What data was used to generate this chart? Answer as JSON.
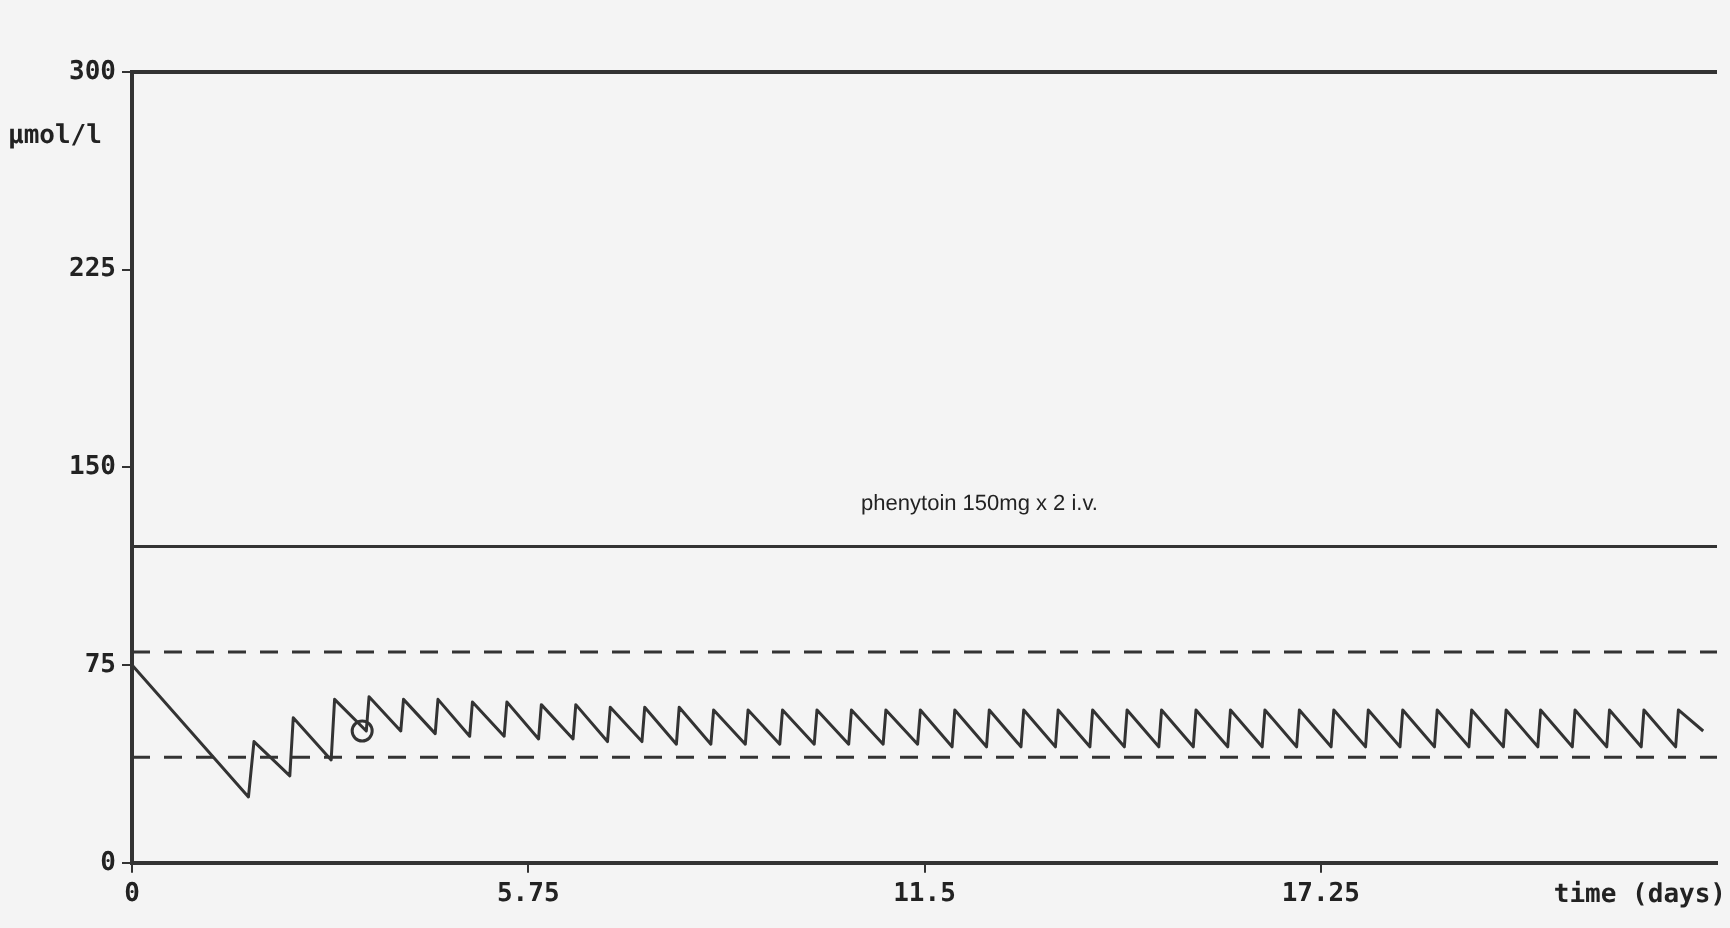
{
  "chart_data": {
    "type": "line",
    "xlabel": "time (days)",
    "ylabel": "µmol/l",
    "xlim": [
      0,
      23
    ],
    "xticks": [
      0,
      5.75,
      11.5,
      17.25
    ],
    "ylim": [
      0,
      300
    ],
    "yticks": [
      0,
      75,
      150,
      225,
      300
    ],
    "grid": false,
    "legend": false,
    "marker": "none",
    "line_style": "solid",
    "ref_lines": [
      {
        "axis": "y",
        "value": 120,
        "label": "phenytoin 150mg x 2 i.v.",
        "color": "#333333",
        "line_style": "solid"
      },
      {
        "axis": "y",
        "value": 80,
        "color": "#333333",
        "line_style": "dashed"
      },
      {
        "axis": "y",
        "value": 40,
        "color": "#333333",
        "line_style": "dashed"
      }
    ],
    "series": [
      {
        "color": "#333333",
        "x": [
          0,
          1.69,
          1.77,
          2.29,
          2.34,
          2.89,
          2.94,
          3.4,
          3.44,
          3.9,
          3.94,
          4.4,
          4.44,
          4.9,
          4.94,
          5.4,
          5.44,
          5.9,
          5.94,
          6.4,
          6.44,
          6.9,
          6.94,
          7.4,
          7.44,
          7.9,
          7.94,
          8.4,
          8.44,
          8.9,
          8.94,
          9.4,
          9.44,
          9.9,
          9.94,
          10.4,
          10.44,
          10.9,
          10.94,
          11.4,
          11.44,
          11.9,
          11.94,
          12.4,
          12.44,
          12.9,
          12.94,
          13.4,
          13.44,
          13.9,
          13.94,
          14.4,
          14.44,
          14.9,
          14.94,
          15.4,
          15.44,
          15.9,
          15.94,
          16.4,
          16.44,
          16.9,
          16.94,
          17.4,
          17.44,
          17.9,
          17.94,
          18.4,
          18.44,
          18.9,
          18.94,
          19.4,
          19.44,
          19.9,
          19.94,
          20.4,
          20.44,
          20.9,
          20.94,
          21.4,
          21.44,
          21.9,
          21.94,
          22.4,
          22.44,
          22.8
        ],
        "values": [
          75,
          25,
          46,
          33,
          55,
          39,
          62,
          50,
          63,
          50,
          62,
          49,
          62,
          48,
          61,
          48,
          61,
          47,
          60,
          47,
          60,
          46,
          59,
          46,
          59,
          45,
          59,
          45,
          58,
          45,
          58,
          45,
          58,
          45,
          58,
          45,
          58,
          45,
          58,
          45,
          58,
          44,
          58,
          44,
          58,
          44,
          58,
          44,
          58,
          44,
          58,
          44,
          58,
          44,
          58,
          44,
          58,
          44,
          58,
          44,
          58,
          44,
          58,
          44,
          58,
          44,
          58,
          44,
          58,
          44,
          58,
          44,
          58,
          44,
          58,
          44,
          58,
          44,
          58,
          44,
          58,
          44,
          58,
          44,
          58,
          50
        ]
      },
      {
        "type": "scatter",
        "color": "#333333",
        "marker": "circle",
        "x": [
          3.34
        ],
        "values": [
          50
        ]
      }
    ]
  }
}
